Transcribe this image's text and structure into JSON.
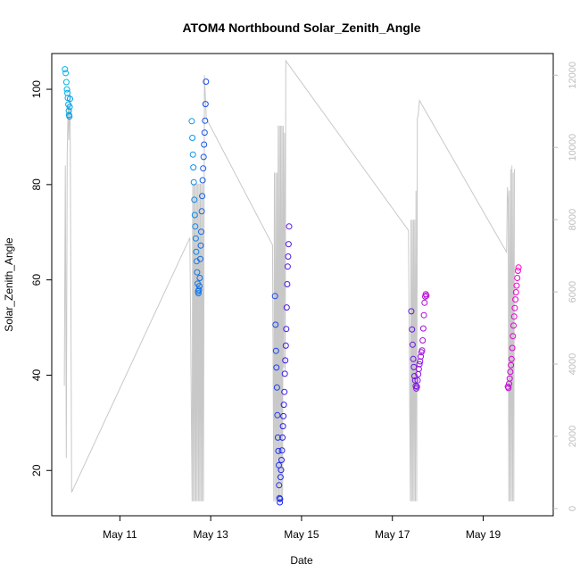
{
  "chart_data": {
    "type": "scatter",
    "title": "ATOM4 Northbound Solar_Zenith_Angle",
    "xlabel": "Date",
    "ylabel": "Solar_Zenith_Angle",
    "xlim": [
      "2023-05-09T12:00",
      "2023-05-20T13:00"
    ],
    "ylim": [
      10.5,
      107.5
    ],
    "y2lim": [
      -200,
      12600
    ],
    "x_ticks": [
      {
        "date": "2023-05-11T00:00",
        "label": "May 11"
      },
      {
        "date": "2023-05-13T00:00",
        "label": "May 13"
      },
      {
        "date": "2023-05-15T00:00",
        "label": "May 15"
      },
      {
        "date": "2023-05-17T00:00",
        "label": "May 17"
      },
      {
        "date": "2023-05-19T00:00",
        "label": "May 19"
      }
    ],
    "y_ticks": [
      20,
      40,
      60,
      80,
      100
    ],
    "y2_ticks": [
      0,
      2000,
      4000,
      6000,
      8000,
      10000,
      12000
    ],
    "color_start": "#00b8e8",
    "color_mid": "#2020f0",
    "color_end": "#ff00cc",
    "line_color": "#c8c8c8",
    "points": [
      [
        "2023-05-09T19:00",
        104.2
      ],
      [
        "2023-05-09T19:20",
        103.4
      ],
      [
        "2023-05-09T19:45",
        101.5
      ],
      [
        "2023-05-09T20:00",
        100.0
      ],
      [
        "2023-05-09T20:15",
        99.2
      ],
      [
        "2023-05-09T20:30",
        98.2
      ],
      [
        "2023-05-09T20:45",
        96.8
      ],
      [
        "2023-05-09T21:00",
        95.5
      ],
      [
        "2023-05-09T21:10",
        94.6
      ],
      [
        "2023-05-09T21:20",
        94.3
      ],
      [
        "2023-05-09T21:30",
        96.3
      ],
      [
        "2023-05-09T21:40",
        98.0
      ],
      [
        "2023-05-12T14:00",
        93.3
      ],
      [
        "2023-05-12T14:20",
        89.8
      ],
      [
        "2023-05-12T14:35",
        86.3
      ],
      [
        "2023-05-12T14:50",
        83.6
      ],
      [
        "2023-05-12T15:05",
        80.5
      ],
      [
        "2023-05-12T15:20",
        76.8
      ],
      [
        "2023-05-12T15:35",
        73.6
      ],
      [
        "2023-05-12T15:50",
        71.2
      ],
      [
        "2023-05-12T16:05",
        68.7
      ],
      [
        "2023-05-12T16:20",
        65.9
      ],
      [
        "2023-05-12T16:35",
        63.9
      ],
      [
        "2023-05-12T16:50",
        61.6
      ],
      [
        "2023-05-12T17:05",
        59.2
      ],
      [
        "2023-05-12T17:20",
        57.6
      ],
      [
        "2023-05-12T17:30",
        57.2
      ],
      [
        "2023-05-12T17:45",
        57.9
      ],
      [
        "2023-05-12T18:00",
        58.7
      ],
      [
        "2023-05-12T18:15",
        60.4
      ],
      [
        "2023-05-12T18:30",
        64.4
      ],
      [
        "2023-05-12T18:45",
        67.2
      ],
      [
        "2023-05-12T19:00",
        70.1
      ],
      [
        "2023-05-12T19:15",
        74.4
      ],
      [
        "2023-05-12T19:30",
        77.6
      ],
      [
        "2023-05-12T19:45",
        80.9
      ],
      [
        "2023-05-12T20:00",
        83.4
      ],
      [
        "2023-05-12T20:15",
        85.8
      ],
      [
        "2023-05-12T20:30",
        88.4
      ],
      [
        "2023-05-12T20:45",
        90.9
      ],
      [
        "2023-05-12T21:00",
        93.4
      ],
      [
        "2023-05-12T21:15",
        96.9
      ],
      [
        "2023-05-12T21:30",
        101.6
      ],
      [
        "2023-05-14T10:00",
        56.6
      ],
      [
        "2023-05-14T10:15",
        50.6
      ],
      [
        "2023-05-14T10:30",
        45.1
      ],
      [
        "2023-05-14T10:45",
        41.6
      ],
      [
        "2023-05-14T11:00",
        37.4
      ],
      [
        "2023-05-14T11:15",
        31.6
      ],
      [
        "2023-05-14T11:30",
        26.9
      ],
      [
        "2023-05-14T11:45",
        24.1
      ],
      [
        "2023-05-14T12:00",
        21.1
      ],
      [
        "2023-05-14T12:10",
        16.9
      ],
      [
        "2023-05-14T12:20",
        14.2
      ],
      [
        "2023-05-14T12:30",
        13.3
      ],
      [
        "2023-05-14T12:40",
        14.0
      ],
      [
        "2023-05-14T12:55",
        18.6
      ],
      [
        "2023-05-14T13:10",
        20.1
      ],
      [
        "2023-05-14T13:25",
        22.2
      ],
      [
        "2023-05-14T13:40",
        24.2
      ],
      [
        "2023-05-14T13:55",
        26.9
      ],
      [
        "2023-05-14T14:10",
        29.3
      ],
      [
        "2023-05-14T14:25",
        31.4
      ],
      [
        "2023-05-14T14:40",
        33.8
      ],
      [
        "2023-05-14T14:55",
        36.5
      ],
      [
        "2023-05-14T15:10",
        40.3
      ],
      [
        "2023-05-14T15:25",
        43.1
      ],
      [
        "2023-05-14T15:40",
        46.2
      ],
      [
        "2023-05-14T15:55",
        49.7
      ],
      [
        "2023-05-14T16:10",
        54.2
      ],
      [
        "2023-05-14T16:25",
        59.1
      ],
      [
        "2023-05-14T16:40",
        62.8
      ],
      [
        "2023-05-14T16:55",
        64.9
      ],
      [
        "2023-05-14T17:10",
        67.5
      ],
      [
        "2023-05-14T17:25",
        71.2
      ],
      [
        "2023-05-17T10:00",
        53.4
      ],
      [
        "2023-05-17T10:20",
        49.6
      ],
      [
        "2023-05-17T10:40",
        46.4
      ],
      [
        "2023-05-17T11:00",
        43.4
      ],
      [
        "2023-05-17T11:20",
        41.7
      ],
      [
        "2023-05-17T11:40",
        39.8
      ],
      [
        "2023-05-17T12:00",
        38.9
      ],
      [
        "2023-05-17T12:20",
        37.7
      ],
      [
        "2023-05-17T12:40",
        37.2
      ],
      [
        "2023-05-17T13:00",
        37.6
      ],
      [
        "2023-05-17T13:20",
        38.9
      ],
      [
        "2023-05-17T13:40",
        40.2
      ],
      [
        "2023-05-17T14:00",
        41.3
      ],
      [
        "2023-05-17T14:20",
        42.3
      ],
      [
        "2023-05-17T14:40",
        42.9
      ],
      [
        "2023-05-17T15:00",
        43.9
      ],
      [
        "2023-05-17T15:20",
        44.8
      ],
      [
        "2023-05-17T15:40",
        45.2
      ],
      [
        "2023-05-17T16:00",
        47.3
      ],
      [
        "2023-05-17T16:20",
        49.8
      ],
      [
        "2023-05-17T16:40",
        52.6
      ],
      [
        "2023-05-17T17:00",
        55.2
      ],
      [
        "2023-05-17T17:20",
        56.5
      ],
      [
        "2023-05-17T17:40",
        57.0
      ],
      [
        "2023-05-17T18:00",
        56.7
      ],
      [
        "2023-05-19T13:00",
        37.6
      ],
      [
        "2023-05-19T13:20",
        37.3
      ],
      [
        "2023-05-19T13:40",
        38.2
      ],
      [
        "2023-05-19T14:00",
        39.3
      ],
      [
        "2023-05-19T14:20",
        40.7
      ],
      [
        "2023-05-19T14:40",
        42.1
      ],
      [
        "2023-05-19T15:00",
        43.4
      ],
      [
        "2023-05-19T15:20",
        45.7
      ],
      [
        "2023-05-19T15:40",
        48.2
      ],
      [
        "2023-05-19T16:00",
        50.4
      ],
      [
        "2023-05-19T16:20",
        52.3
      ],
      [
        "2023-05-19T16:40",
        54.1
      ],
      [
        "2023-05-19T17:00",
        55.9
      ],
      [
        "2023-05-19T17:20",
        57.4
      ],
      [
        "2023-05-19T17:40",
        58.8
      ],
      [
        "2023-05-19T18:00",
        60.4
      ],
      [
        "2023-05-19T18:20",
        61.9
      ],
      [
        "2023-05-19T18:40",
        62.6
      ]
    ],
    "line_series": [
      [
        "2023-05-09T18:40",
        3400
      ],
      [
        "2023-05-09T19:10",
        9500
      ],
      [
        "2023-05-09T19:40",
        1400
      ],
      [
        "2023-05-09T20:10",
        9800
      ],
      [
        "2023-05-09T20:40",
        11200
      ],
      [
        "2023-05-09T21:00",
        10200
      ],
      [
        "2023-05-09T21:40",
        11600
      ],
      [
        "2023-05-09T22:30",
        450
      ],
      [
        "2023-05-12T13:00",
        7500
      ],
      [
        "2023-05-12T14:10",
        200
      ],
      [
        "2023-05-12T14:30",
        9000
      ],
      [
        "2023-05-12T14:50",
        200
      ],
      [
        "2023-05-12T15:10",
        9000
      ],
      [
        "2023-05-12T15:30",
        200
      ],
      [
        "2023-05-12T15:50",
        9000
      ],
      [
        "2023-05-12T16:10",
        200
      ],
      [
        "2023-05-12T16:30",
        9000
      ],
      [
        "2023-05-12T16:50",
        200
      ],
      [
        "2023-05-12T17:10",
        9000
      ],
      [
        "2023-05-12T17:30",
        200
      ],
      [
        "2023-05-12T17:50",
        9000
      ],
      [
        "2023-05-12T18:10",
        200
      ],
      [
        "2023-05-12T18:30",
        9000
      ],
      [
        "2023-05-12T18:50",
        200
      ],
      [
        "2023-05-12T19:10",
        9000
      ],
      [
        "2023-05-12T19:30",
        200
      ],
      [
        "2023-05-12T19:50",
        9000
      ],
      [
        "2023-05-12T20:10",
        200
      ],
      [
        "2023-05-12T20:40",
        12000
      ],
      [
        "2023-05-12T21:40",
        10800
      ],
      [
        "2023-05-14T08:40",
        7300
      ],
      [
        "2023-05-14T09:20",
        200
      ],
      [
        "2023-05-14T09:40",
        9300
      ],
      [
        "2023-05-14T10:00",
        200
      ],
      [
        "2023-05-14T10:20",
        9300
      ],
      [
        "2023-05-14T10:40",
        200
      ],
      [
        "2023-05-14T11:00",
        9300
      ],
      [
        "2023-05-14T11:20",
        200
      ],
      [
        "2023-05-14T11:40",
        10600
      ],
      [
        "2023-05-14T12:00",
        200
      ],
      [
        "2023-05-14T12:20",
        10600
      ],
      [
        "2023-05-14T12:40",
        200
      ],
      [
        "2023-05-14T13:00",
        10600
      ],
      [
        "2023-05-14T13:20",
        200
      ],
      [
        "2023-05-14T13:40",
        10600
      ],
      [
        "2023-05-14T14:00",
        200
      ],
      [
        "2023-05-14T14:20",
        10600
      ],
      [
        "2023-05-14T14:40",
        3900
      ],
      [
        "2023-05-14T15:00",
        10400
      ],
      [
        "2023-05-14T15:20",
        3800
      ],
      [
        "2023-05-14T15:40",
        12400
      ],
      [
        "2023-05-17T08:30",
        7700
      ],
      [
        "2023-05-17T09:30",
        200
      ],
      [
        "2023-05-17T09:50",
        8000
      ],
      [
        "2023-05-17T10:10",
        200
      ],
      [
        "2023-05-17T10:30",
        8000
      ],
      [
        "2023-05-17T10:50",
        200
      ],
      [
        "2023-05-17T11:10",
        8000
      ],
      [
        "2023-05-17T11:30",
        200
      ],
      [
        "2023-05-17T11:50",
        8000
      ],
      [
        "2023-05-17T12:10",
        200
      ],
      [
        "2023-05-17T12:30",
        8800
      ],
      [
        "2023-05-17T12:50",
        200
      ],
      [
        "2023-05-17T13:10",
        10800
      ],
      [
        "2023-05-17T13:40",
        10900
      ],
      [
        "2023-05-17T14:20",
        11300
      ],
      [
        "2023-05-19T12:20",
        7100
      ],
      [
        "2023-05-19T12:50",
        8900
      ],
      [
        "2023-05-19T13:10",
        8600
      ],
      [
        "2023-05-19T13:30",
        200
      ],
      [
        "2023-05-19T13:50",
        8800
      ],
      [
        "2023-05-19T14:10",
        200
      ],
      [
        "2023-05-19T14:30",
        9400
      ],
      [
        "2023-05-19T14:50",
        200
      ],
      [
        "2023-05-19T15:10",
        9500
      ],
      [
        "2023-05-19T15:30",
        200
      ],
      [
        "2023-05-19T15:50",
        9300
      ],
      [
        "2023-05-19T16:10",
        200
      ],
      [
        "2023-05-19T16:30",
        9400
      ]
    ]
  }
}
